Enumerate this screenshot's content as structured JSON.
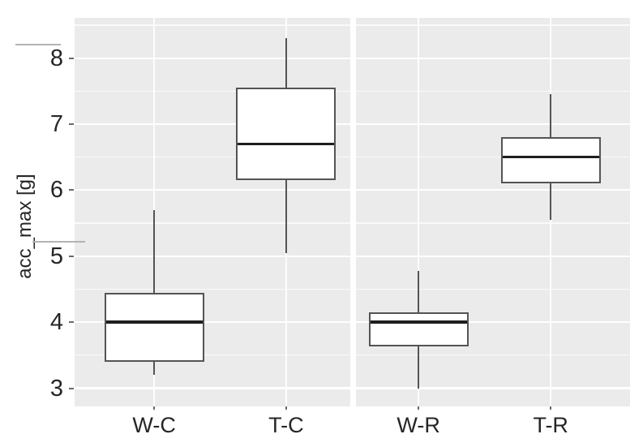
{
  "chart_data": {
    "type": "boxplot",
    "title": "",
    "xlabel": "",
    "ylabel": "acc_max [g]",
    "ylim": [
      2.73,
      8.61
    ],
    "y_ticks": [
      3,
      4,
      5,
      6,
      7,
      8
    ],
    "y_minor_gridlines": [
      3.5,
      4.5,
      5.5,
      6.5,
      7.5,
      8.5
    ],
    "grid": "white major+minor horizontal gridlines and vertical gridline per category on gray panel",
    "legend_position": "none",
    "panels": [
      {
        "name": "left-panel",
        "categories": [
          "W-C",
          "T-C"
        ],
        "boxes": [
          {
            "category": "W-C",
            "whisker_low": 3.2,
            "q1": 3.4,
            "median": 4.0,
            "q3": 4.45,
            "whisker_high": 5.7
          },
          {
            "category": "T-C",
            "whisker_low": 5.05,
            "q1": 6.15,
            "median": 6.7,
            "q3": 7.55,
            "whisker_high": 8.3
          }
        ]
      },
      {
        "name": "right-panel",
        "categories": [
          "W-R",
          "T-R"
        ],
        "boxes": [
          {
            "category": "W-R",
            "whisker_low": 3.0,
            "q1": 3.63,
            "median": 4.0,
            "q3": 4.15,
            "whisker_high": 4.78
          },
          {
            "category": "T-R",
            "whisker_low": 5.55,
            "q1": 6.1,
            "median": 6.5,
            "q3": 6.8,
            "whisker_high": 7.45
          }
        ]
      }
    ]
  },
  "colors": {
    "figure_background": "#ffffff",
    "panel_background": "#ebebeb",
    "grid_major": "#ffffff",
    "grid_minor": "rgba(255,255,255,0.72)",
    "box_fill": "#ffffff",
    "box_border": "#545454",
    "median": "#1f1f1f",
    "axis_text": "#262626",
    "tick_mark": "#6a6a6a",
    "artifact": "#b3b3b3"
  }
}
